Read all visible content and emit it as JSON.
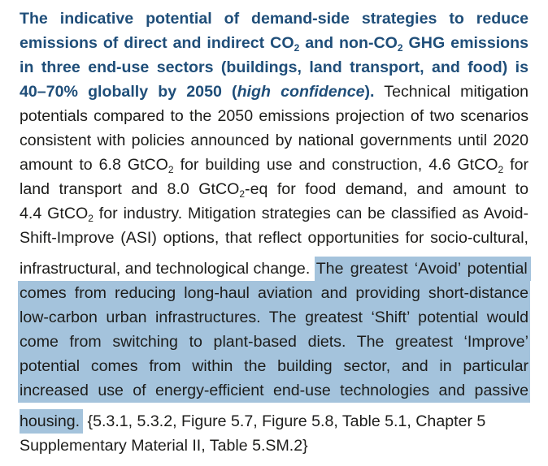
{
  "paragraph": {
    "bold_lines": [
      [
        "The indicative potential of demand-side strategies to reduce"
      ],
      [
        "emissions of direct and indirect CO",
        "2",
        " and non-CO",
        "2",
        " GHG emissions"
      ],
      [
        "in three end-use sectors (buildings, land transport, and food) is"
      ],
      [
        "40–70% globally by 2050 (",
        "high confidence",
        ")."
      ]
    ],
    "line4_normal": " Technical mitigation",
    "normal_lines": [
      [
        "potentials compared to the 2050 emissions projection of two scenarios"
      ],
      [
        "consistent with policies announced by national governments until 2020"
      ],
      [
        "amount to 6.8 GtCO",
        "2",
        " for building use and construction, 4.6 GtCO",
        "2",
        " for"
      ],
      [
        "land transport and 8.0 GtCO",
        "2",
        "-eq for food demand,  and amount to"
      ],
      [
        "4.4 GtCO",
        "2",
        " for industry. Mitigation strategies can be classified as Avoid-"
      ],
      [
        "Shift-Improve (ASI) options, that reflect opportunities for socio-cultural,"
      ]
    ],
    "line11_normal": "infrastructural, and technological change.",
    "line11_highlight": "The greatest ‘Avoid’ potential",
    "highlight_lines": [
      "comes from reducing long-haul aviation and providing short-distance",
      "low-carbon urban infrastructures. The greatest ‘Shift’ potential would",
      "come from switching to plant-based diets. The greatest ‘Improve’",
      "potential comes from within the building sector, and in particular",
      "increased use of energy-efficient end-use technologies and passive"
    ],
    "line17_highlight": "housing.",
    "line17_normal": " {5.3.1, 5.3.2, Figure 5.7, Figure 5.8, Table 5.1, Chapter 5",
    "line18": "Supplementary Material II, Table 5.SM.2}",
    "colors": {
      "heading": "#1f4e79",
      "highlight": "#a4c3dc",
      "text": "#1d1d1b"
    }
  }
}
